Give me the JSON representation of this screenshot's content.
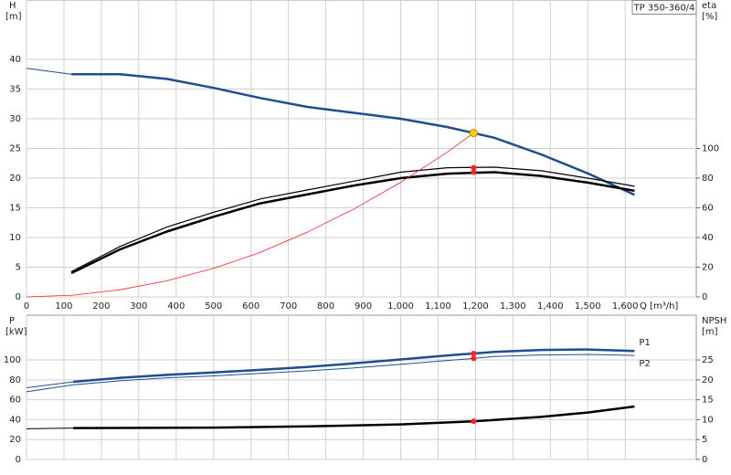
{
  "chart_data": [
    {
      "type": "line",
      "title": "TP 350-360/4",
      "ylabel": "H",
      "yunit": "[m]",
      "y2label": "eta",
      "y2unit": "[%]",
      "xlabel": "Q [m³/h]",
      "xlim": [
        0,
        1790
      ],
      "xticks": [
        0,
        100,
        200,
        300,
        400,
        500,
        600,
        700,
        800,
        900,
        {
          "value": 1000,
          "label": "1,000"
        },
        {
          "value": 1100,
          "label": "1,100"
        },
        {
          "value": 1200,
          "label": "1,200"
        },
        {
          "value": 1300,
          "label": "1,300"
        },
        {
          "value": 1400,
          "label": "1,400"
        },
        {
          "value": 1500,
          "label": "1,500"
        },
        {
          "value": 1600,
          "label": "1,600"
        }
      ],
      "ylim": [
        0,
        50
      ],
      "yticks": [
        0,
        5,
        10,
        15,
        20,
        25,
        30,
        35,
        40
      ],
      "y2lim": [
        0,
        200
      ],
      "y2ticks": [
        0,
        20,
        40,
        60,
        80,
        100
      ],
      "grid": true,
      "series": [
        {
          "color": "#1f4e8c",
          "width": 1,
          "axis": "y",
          "x": [
            0,
            120
          ],
          "values": [
            38.5,
            37.5
          ]
        },
        {
          "color": "#1f4e8c",
          "width": 2.5,
          "axis": "y",
          "x": [
            120,
            250,
            375,
            500,
            625,
            750,
            875,
            1000,
            1125,
            1195,
            1250,
            1375,
            1500,
            1625
          ],
          "values": [
            37.5,
            37.5,
            36.7,
            35.2,
            33.5,
            32,
            31,
            30,
            28.6,
            27.6,
            26.8,
            24,
            20.8,
            17.2
          ]
        },
        {
          "color": "#000000",
          "width": 1.2,
          "axis": "y2",
          "x": [
            120,
            250,
            375,
            500,
            625,
            750,
            875,
            1000,
            1125,
            1250,
            1375,
            1500,
            1625
          ],
          "values": [
            17,
            34,
            47,
            57,
            66,
            72,
            78,
            84,
            87,
            87.4,
            85,
            80,
            74.5
          ]
        },
        {
          "color": "#000000",
          "width": 2.5,
          "axis": "y2",
          "x": [
            120,
            250,
            375,
            500,
            625,
            750,
            875,
            1000,
            1125,
            1250,
            1375,
            1500,
            1625
          ],
          "values": [
            16,
            32,
            44,
            54,
            63,
            69,
            75,
            80,
            83,
            84,
            81.5,
            77,
            71.5
          ]
        },
        {
          "color": "#ff2020",
          "width": 0.8,
          "axis": "y",
          "x": [
            0,
            125,
            250,
            375,
            500,
            625,
            750,
            875,
            1000,
            1125,
            1195
          ],
          "values": [
            0,
            0.3,
            1.2,
            2.7,
            4.8,
            7.5,
            10.9,
            14.8,
            19.3,
            24.4,
            27.6
          ]
        }
      ],
      "markers": [
        {
          "x": 1195,
          "y": 27.6,
          "axis": "y",
          "color": "#ffcc00"
        },
        {
          "x": 1195,
          "y": 87,
          "axis": "y2",
          "color": "#ff2020"
        },
        {
          "x": 1195,
          "y": 84,
          "axis": "y2",
          "color": "#ff2020"
        }
      ]
    },
    {
      "type": "line",
      "ylabel": "P",
      "yunit": "[kW]",
      "y2label": "NPSH",
      "y2unit": "[m]",
      "xlim": [
        0,
        1790
      ],
      "xticks": [
        0,
        100,
        200,
        300,
        400,
        500,
        600,
        700,
        800,
        900,
        1000,
        1100,
        1200,
        1300,
        1400,
        1500,
        1600
      ],
      "xtick_labels": false,
      "ylim": [
        0,
        145
      ],
      "yticks": [
        0,
        20,
        40,
        60,
        80,
        100
      ],
      "y2lim": [
        0,
        36.25
      ],
      "y2ticks": [
        0,
        5,
        10,
        15,
        20,
        25
      ],
      "grid": true,
      "series": [
        {
          "color": "#1f4e8c",
          "width": 1,
          "axis": "y",
          "x": [
            0,
            125
          ],
          "values": [
            72,
            78
          ]
        },
        {
          "name": "P1",
          "color": "#1f4e8c",
          "width": 2.5,
          "axis": "y",
          "x": [
            125,
            250,
            375,
            500,
            625,
            750,
            875,
            1000,
            1125,
            1195,
            1250,
            1375,
            1500,
            1625
          ],
          "values": [
            78,
            82,
            85,
            87.5,
            90,
            93,
            96.5,
            100.5,
            104.5,
            106.5,
            108,
            110,
            110.5,
            109
          ]
        },
        {
          "name": "P2",
          "color": "#1f4e8c",
          "width": 1,
          "axis": "y",
          "x": [
            0,
            125,
            250,
            375,
            500,
            625,
            750,
            875,
            1000,
            1125,
            1195,
            1250,
            1375,
            1500,
            1625
          ],
          "values": [
            68,
            75,
            79,
            82,
            84,
            86.5,
            89,
            92,
            95.5,
            99.5,
            101.5,
            103.5,
            105,
            105.5,
            104.5
          ]
        },
        {
          "color": "#000000",
          "width": 1,
          "axis": "y2",
          "x": [
            0,
            125
          ],
          "values": [
            7.7,
            7.9
          ]
        },
        {
          "color": "#000000",
          "width": 2.5,
          "axis": "y2",
          "x": [
            125,
            500,
            750,
            1000,
            1195,
            1375,
            1500,
            1625
          ],
          "values": [
            7.9,
            8.0,
            8.3,
            8.8,
            9.6,
            10.7,
            11.8,
            13.3
          ]
        }
      ],
      "markers": [
        {
          "x": 1195,
          "y": 106.5,
          "axis": "y",
          "color": "#ff2020"
        },
        {
          "x": 1195,
          "y": 101.5,
          "axis": "y",
          "color": "#ff2020"
        },
        {
          "x": 1195,
          "y": 9.6,
          "axis": "y2",
          "color": "#ff2020"
        }
      ]
    }
  ]
}
